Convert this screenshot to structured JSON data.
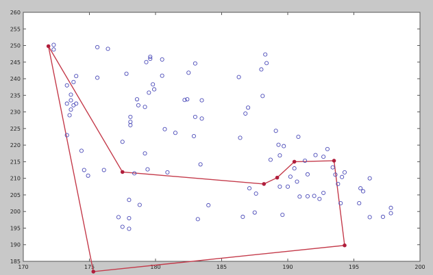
{
  "chart_data": {
    "type": "scatter",
    "title": "",
    "xlabel": "",
    "ylabel": "",
    "xlim": [
      170,
      200
    ],
    "ylim": [
      185,
      260
    ],
    "x_ticks": [
      170,
      175,
      180,
      185,
      190,
      195,
      200
    ],
    "y_ticks": [
      185,
      190,
      195,
      200,
      205,
      210,
      215,
      220,
      225,
      230,
      235,
      240,
      245,
      250,
      255,
      260
    ],
    "x_tick_labels": [
      "170",
      "175",
      "180",
      "185",
      "190",
      "195",
      "200"
    ],
    "y_tick_labels": [
      "185",
      "190",
      "195",
      "200",
      "205",
      "210",
      "215",
      "220",
      "225",
      "230",
      "235",
      "240",
      "245",
      "250",
      "255",
      "260"
    ],
    "grid": false,
    "colors": {
      "background": "#c8c8c8",
      "plot_area": "#ffffff",
      "points": "#4a4ab8",
      "hull": "#c43a4a",
      "hull_vertices": "#b01e3c"
    },
    "series": [
      {
        "kind": "points",
        "x": [
          172.3,
          172.3,
          173.3,
          173.3,
          173.3,
          173.5,
          173.6,
          173.6,
          173.6,
          173.8,
          173.8,
          174,
          174,
          174.4,
          174.6,
          174.9,
          175.6,
          175.6,
          176.1,
          176.4,
          177.2,
          177.5,
          177.5,
          177.8,
          178,
          178,
          178,
          178.1,
          178.1,
          178.1,
          178.4,
          178.6,
          178.7,
          178.8,
          179.2,
          179.2,
          179.3,
          179.4,
          179.5,
          179.6,
          179.6,
          179.8,
          179.9,
          180.5,
          180.5,
          180.7,
          180.9,
          181.5,
          182.2,
          182.4,
          182.5,
          182.9,
          183,
          183,
          183.2,
          183.4,
          183.5,
          183.5,
          184,
          186.3,
          186.4,
          186.6,
          186.8,
          187,
          187.1,
          187.5,
          187.6,
          188,
          188.1,
          188.3,
          188.4,
          188.7,
          189.1,
          189.3,
          189.4,
          189.4,
          189.6,
          189.7,
          190,
          190.2,
          190.5,
          190.7,
          190.8,
          190.9,
          191.3,
          191.5,
          191.5,
          192,
          192.1,
          192.4,
          192.7,
          192.7,
          193,
          193.4,
          193.6,
          193.8,
          194,
          194.1,
          194.3,
          195.4,
          195.5,
          195.7,
          196.2,
          196.2,
          197.2,
          197.8,
          197.8
        ],
        "y": [
          248.8,
          250.2,
          238,
          223,
          232.5,
          229,
          233.5,
          230.7,
          235.2,
          232,
          239,
          240.8,
          232.5,
          218.3,
          212.5,
          210.8,
          249.5,
          240.3,
          212.5,
          249,
          198.3,
          221,
          195.4,
          241.5,
          203.5,
          194.8,
          198,
          227,
          228.5,
          226,
          211.5,
          233.8,
          232,
          202,
          217.5,
          231.5,
          245,
          212.7,
          235.8,
          246,
          246.6,
          238.3,
          236.8,
          245.8,
          240.9,
          224.8,
          211.8,
          223.7,
          233.6,
          233.8,
          241.8,
          222.7,
          244.6,
          228.5,
          197.7,
          214.2,
          233.5,
          228,
          201.9,
          240.5,
          222.2,
          198.4,
          229.5,
          231.3,
          207,
          199.7,
          205.4,
          242.8,
          234.8,
          247.3,
          244.7,
          215.6,
          224.3,
          220.1,
          216.9,
          207.5,
          199,
          219.7,
          207.5,
          210.5,
          213,
          209,
          222.5,
          204.5,
          215.3,
          211.2,
          204.6,
          204.7,
          217,
          203.8,
          205.6,
          216.5,
          218.8,
          213.3,
          211.1,
          208.3,
          202.5,
          210.4,
          211.8,
          202.5,
          207,
          206.1,
          210,
          198.3,
          198.4,
          201.1,
          199.5
        ]
      },
      {
        "kind": "hull",
        "closed": true,
        "x": [
          171.9,
          177.5,
          188.2,
          189.2,
          190.5,
          193.5,
          194.3,
          175.3
        ],
        "y": [
          249.8,
          211.9,
          208.3,
          210.2,
          215.0,
          215.3,
          189.8,
          181.9
        ]
      }
    ]
  }
}
